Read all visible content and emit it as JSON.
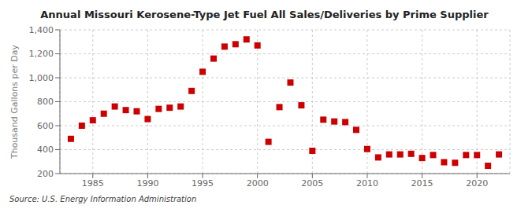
{
  "chart_data": {
    "type": "scatter",
    "title": "Annual Missouri Kerosene-Type Jet Fuel All Sales/Deliveries by Prime Supplier",
    "ylabel": "Thousand Gallons per Day",
    "annotations": [
      "Source: U.S. Energy Information Administration"
    ],
    "x": [
      1983,
      1984,
      1985,
      1986,
      1987,
      1988,
      1989,
      1990,
      1991,
      1992,
      1993,
      1994,
      1995,
      1996,
      1997,
      1998,
      1999,
      2000,
      2001,
      2002,
      2003,
      2004,
      2005,
      2006,
      2007,
      2008,
      2009,
      2010,
      2011,
      2012,
      2013,
      2014,
      2015,
      2016,
      2017,
      2018,
      2019,
      2020,
      2021,
      2022
    ],
    "values": [
      490,
      600,
      645,
      700,
      760,
      730,
      720,
      655,
      740,
      750,
      760,
      890,
      1050,
      1160,
      1260,
      1280,
      1320,
      1270,
      465,
      755,
      960,
      770,
      390,
      650,
      635,
      630,
      565,
      405,
      335,
      360,
      360,
      365,
      330,
      355,
      295,
      290,
      355,
      355,
      265,
      360
    ],
    "color": "#cc0000",
    "marker": "square",
    "xlim": [
      1982,
      2023
    ],
    "xticks": [
      1985,
      1990,
      1995,
      2000,
      2005,
      2010,
      2015,
      2020
    ],
    "ylim": [
      200,
      1400
    ],
    "yticks": [
      200,
      400,
      600,
      800,
      {
        "value": 1000,
        "label": "1,000"
      },
      {
        "value": 1200,
        "label": "1,200"
      },
      {
        "value": 1400,
        "label": "1,400"
      }
    ],
    "grid": true
  }
}
